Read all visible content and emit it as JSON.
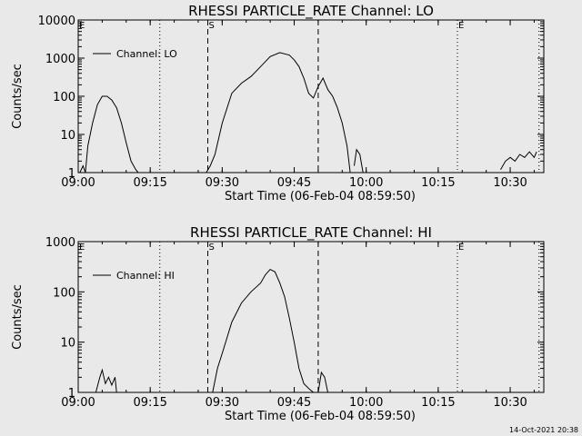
{
  "footer": {
    "timestamp": "14-Oct-2021 20:38"
  },
  "chart_data": [
    {
      "type": "line",
      "title": "RHESSI PARTICLE_RATE Channel: LO",
      "xlabel": "Start Time (06-Feb-04 08:59:50)",
      "ylabel": "Counts/sec",
      "xlim": [
        "09:00",
        "10:37"
      ],
      "ylim": [
        1,
        10000
      ],
      "yscale": "log",
      "xticks": [
        "09:00",
        "09:15",
        "09:30",
        "09:45",
        "10:00",
        "10:15",
        "10:30"
      ],
      "yticks": [
        "1",
        "10",
        "100",
        "1000",
        "10000"
      ],
      "legend": "top-left",
      "series": [
        {
          "name": "Channel: LO",
          "x": [
            "09:00:20",
            "09:01:00",
            "09:01:30",
            "09:02:00",
            "09:03:00",
            "09:04:00",
            "09:05:00",
            "09:06:00",
            "09:07:00",
            "09:08:00",
            "09:09:00",
            "09:10:00",
            "09:11:00",
            "09:12:00",
            "09:12:30",
            "09:26:40",
            "09:27:30",
            "09:28:30",
            "09:30:00",
            "09:32:00",
            "09:34:00",
            "09:36:00",
            "09:38:00",
            "09:40:00",
            "09:42:00",
            "09:44:00",
            "09:45:00",
            "09:46:00",
            "09:47:00",
            "09:48:00",
            "09:49:00",
            "09:50:00",
            "09:51:00",
            "09:52:00",
            "09:53:00",
            "09:54:00",
            "09:55:00",
            "09:56:00",
            "09:56:40",
            "09:57:30",
            "09:58:00",
            "09:58:40",
            "09:59:20",
            "10:28:00",
            "10:29:00",
            "10:30:00",
            "10:31:00",
            "10:32:00",
            "10:33:00",
            "10:34:00",
            "10:35:00",
            "10:35:30"
          ],
          "y": [
            1,
            1.5,
            1,
            5,
            20,
            60,
            100,
            100,
            80,
            50,
            20,
            6,
            2,
            1.2,
            1,
            1,
            1.5,
            3,
            20,
            120,
            220,
            330,
            600,
            1100,
            1400,
            1200,
            900,
            600,
            300,
            120,
            90,
            180,
            300,
            150,
            100,
            50,
            20,
            5,
            1,
            1.5,
            4,
            3,
            1,
            1.2,
            2,
            2.5,
            2,
            3,
            2.5,
            3.5,
            2.5,
            3.5
          ],
          "breaks_after": [
            14,
            38,
            42
          ]
        }
      ],
      "annotations": [
        {
          "label": "E",
          "x": "09:00"
        },
        {
          "label": "S",
          "x": "09:27"
        },
        {
          "label": "E",
          "x": "10:19"
        }
      ],
      "vlines": {
        "dashed": [
          "09:27",
          "09:50"
        ],
        "dotted": [
          "09:17",
          "10:19",
          "10:36"
        ]
      }
    },
    {
      "type": "line",
      "title": "RHESSI PARTICLE_RATE Channel: HI",
      "xlabel": "Start Time (06-Feb-04 08:59:50)",
      "ylabel": "Counts/sec",
      "xlim": [
        "09:00",
        "10:37"
      ],
      "ylim": [
        1,
        1000
      ],
      "yscale": "log",
      "xticks": [
        "09:00",
        "09:15",
        "09:30",
        "09:45",
        "10:00",
        "10:15",
        "10:30"
      ],
      "yticks": [
        "1",
        "10",
        "100",
        "1000"
      ],
      "legend": "top-left",
      "series": [
        {
          "name": "Channel: HI",
          "x": [
            "09:03:40",
            "09:04:30",
            "09:05:00",
            "09:05:40",
            "09:06:20",
            "09:07:00",
            "09:07:40",
            "09:08:00",
            "09:28:00",
            "09:29:00",
            "09:30:00",
            "09:32:00",
            "09:34:00",
            "09:36:00",
            "09:38:00",
            "09:39:00",
            "09:40:00",
            "09:41:00",
            "09:42:00",
            "09:43:00",
            "09:44:00",
            "09:45:00",
            "09:46:00",
            "09:47:00",
            "09:48:00",
            "09:49:00",
            "09:50:00",
            "09:50:40",
            "09:51:20",
            "09:52:00"
          ],
          "y": [
            1,
            2,
            2.8,
            1.5,
            2,
            1.4,
            2,
            1,
            1,
            3,
            6,
            25,
            60,
            100,
            150,
            220,
            280,
            250,
            150,
            80,
            30,
            10,
            3,
            1.5,
            1.2,
            1,
            1,
            2.5,
            2,
            1
          ],
          "breaks_after": [
            7,
            25
          ]
        }
      ],
      "annotations": [
        {
          "label": "E",
          "x": "09:00"
        },
        {
          "label": "S",
          "x": "09:27"
        },
        {
          "label": "E",
          "x": "10:19"
        }
      ],
      "vlines": {
        "dashed": [
          "09:27",
          "09:50"
        ],
        "dotted": [
          "09:17",
          "10:19",
          "10:36"
        ]
      }
    }
  ]
}
